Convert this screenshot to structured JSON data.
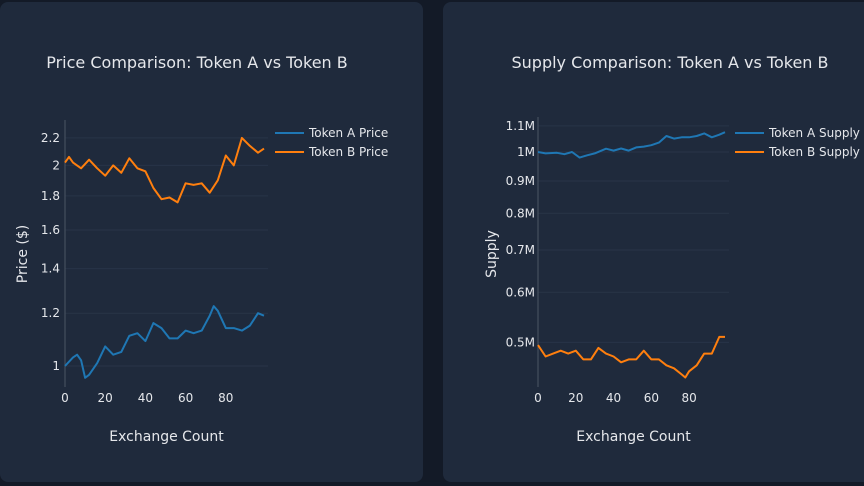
{
  "colors": {
    "token_a": "#1f77b4",
    "token_b": "#ff7f0e",
    "panel": "#1f2a3c",
    "background": "#131a27"
  },
  "chart_data": [
    {
      "type": "line",
      "title": "Price Comparison: Token A vs Token B",
      "xlabel": "Exchange Count",
      "ylabel": "Price ($)",
      "yscale": "log",
      "xlim": [
        0,
        99
      ],
      "ylim": [
        0.93,
        2.34
      ],
      "xticks": [
        "0",
        "20",
        "40",
        "60",
        "80"
      ],
      "yticks": [
        {
          "value": 1,
          "label": "1"
        },
        {
          "value": 1.2,
          "label": "1.2"
        },
        {
          "value": 1.4,
          "label": "1.4"
        },
        {
          "value": 1.6,
          "label": "1.6"
        },
        {
          "value": 1.8,
          "label": "1.8"
        },
        {
          "value": 2,
          "label": "2"
        },
        {
          "value": 2.2,
          "label": "2.2"
        }
      ],
      "legend": "top-right",
      "series": [
        {
          "name": "Token A Price",
          "color": "#1f77b4",
          "x": [
            0,
            4,
            6,
            8,
            10,
            12,
            16,
            20,
            24,
            28,
            32,
            36,
            40,
            44,
            48,
            52,
            56,
            60,
            64,
            68,
            72,
            74,
            76,
            80,
            84,
            88,
            92,
            96,
            99
          ],
          "y": [
            1.0,
            1.03,
            1.04,
            1.02,
            0.96,
            0.97,
            1.01,
            1.07,
            1.04,
            1.05,
            1.11,
            1.12,
            1.09,
            1.16,
            1.14,
            1.1,
            1.1,
            1.13,
            1.12,
            1.13,
            1.19,
            1.23,
            1.21,
            1.14,
            1.14,
            1.13,
            1.15,
            1.2,
            1.19
          ]
        },
        {
          "name": "Token B Price",
          "color": "#ff7f0e",
          "x": [
            0,
            2,
            4,
            8,
            12,
            16,
            20,
            24,
            28,
            32,
            36,
            40,
            44,
            48,
            52,
            56,
            60,
            64,
            68,
            72,
            76,
            80,
            84,
            88,
            92,
            96,
            99
          ],
          "y": [
            2.02,
            2.06,
            2.02,
            1.98,
            2.04,
            1.98,
            1.93,
            2.0,
            1.95,
            2.05,
            1.98,
            1.96,
            1.85,
            1.78,
            1.79,
            1.76,
            1.88,
            1.87,
            1.88,
            1.82,
            1.9,
            2.07,
            2.0,
            2.2,
            2.14,
            2.09,
            2.12
          ]
        }
      ]
    },
    {
      "type": "line",
      "title": "Supply Comparison: Token A vs Token B",
      "xlabel": "Exchange Count",
      "ylabel": "Supply",
      "yscale": "log",
      "xlim": [
        0,
        99
      ],
      "ylim": [
        425000,
        1136000
      ],
      "xticks": [
        "0",
        "20",
        "40",
        "60",
        "80"
      ],
      "yticks": [
        {
          "value": 500000,
          "label": "0.5M"
        },
        {
          "value": 600000,
          "label": "0.6M"
        },
        {
          "value": 700000,
          "label": "0.7M"
        },
        {
          "value": 800000,
          "label": "0.8M"
        },
        {
          "value": 900000,
          "label": "0.9M"
        },
        {
          "value": 1000000,
          "label": "1M"
        },
        {
          "value": 1100000,
          "label": "1.1M"
        }
      ],
      "legend": "top-right",
      "series": [
        {
          "name": "Token A Supply",
          "color": "#1f77b4",
          "x": [
            0,
            4,
            10,
            14,
            18,
            22,
            26,
            30,
            36,
            40,
            44,
            48,
            52,
            56,
            60,
            64,
            68,
            72,
            76,
            80,
            84,
            88,
            92,
            96,
            99
          ],
          "y": [
            1000000,
            995000,
            997000,
            992000,
            1000000,
            980000,
            988000,
            995000,
            1012000,
            1005000,
            1013000,
            1005000,
            1017000,
            1020000,
            1025000,
            1035000,
            1060000,
            1050000,
            1055000,
            1055000,
            1060000,
            1070000,
            1055000,
            1065000,
            1075000
          ]
        },
        {
          "name": "Token B Supply",
          "color": "#ff7f0e",
          "x": [
            0,
            4,
            8,
            12,
            16,
            20,
            24,
            28,
            32,
            36,
            40,
            44,
            48,
            52,
            56,
            60,
            64,
            68,
            72,
            76,
            78,
            80,
            84,
            88,
            92,
            96,
            99
          ],
          "y": [
            495000,
            475000,
            480000,
            485000,
            480000,
            485000,
            470000,
            470000,
            490000,
            480000,
            475000,
            465000,
            470000,
            470000,
            485000,
            470000,
            470000,
            460000,
            455000,
            445000,
            440000,
            450000,
            460000,
            480000,
            480000,
            510000,
            510000
          ]
        }
      ]
    }
  ]
}
